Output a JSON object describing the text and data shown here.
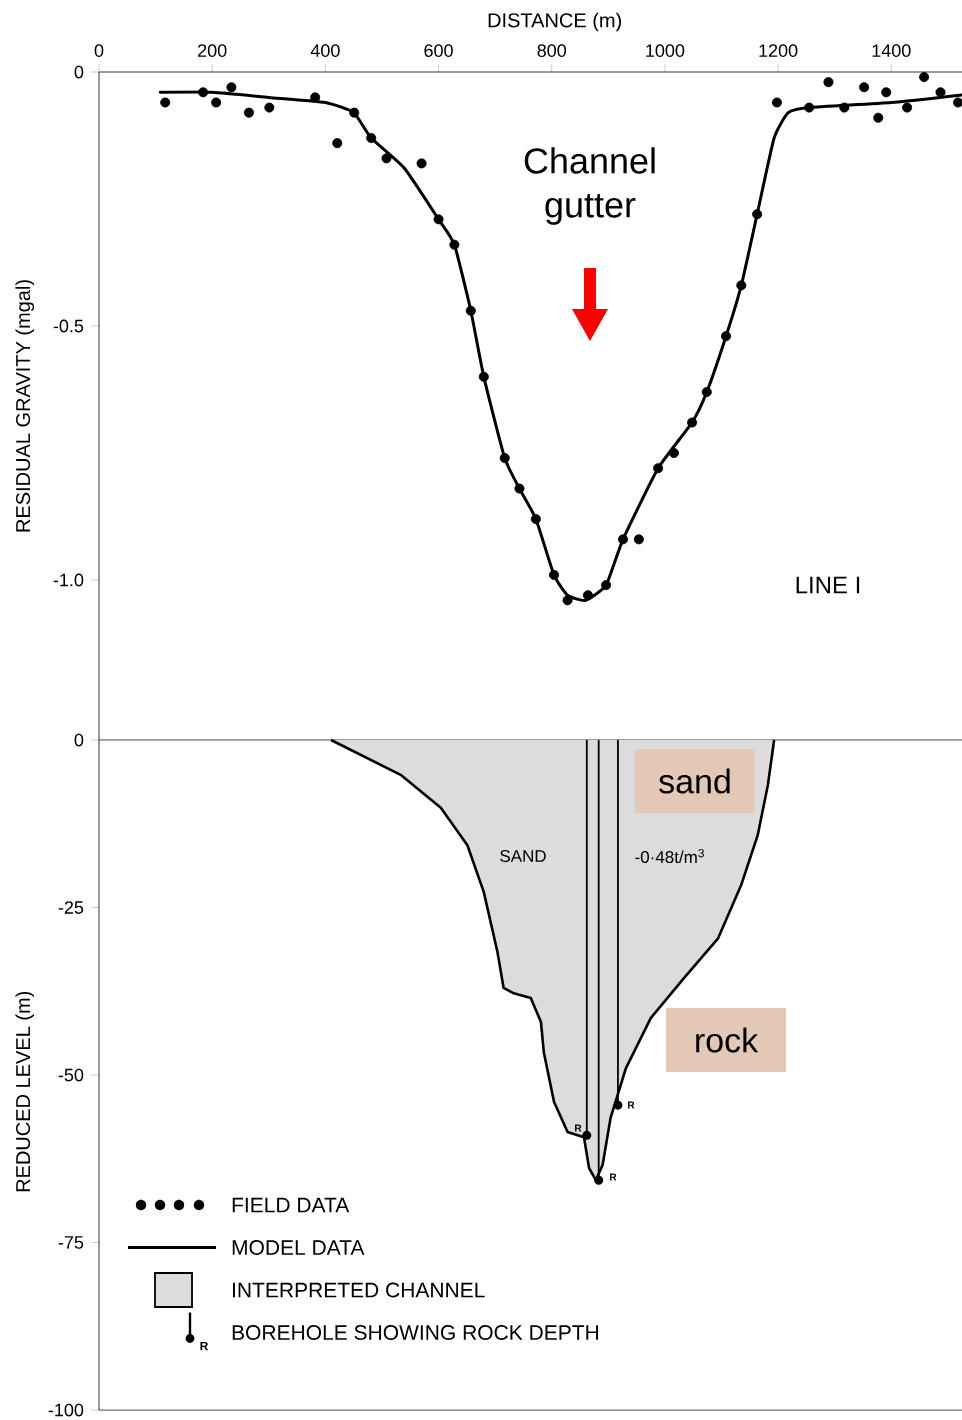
{
  "chart_data": [
    {
      "type": "line",
      "xlabel": "DISTANCE (m)",
      "ylabel": "RESIDUAL GRAVITY (mgal)",
      "xlim": [
        0,
        1525
      ],
      "ylim": [
        -1.315,
        0
      ],
      "xticks": [
        0,
        200,
        400,
        600,
        800,
        1000,
        1200,
        1400
      ],
      "yticks": [
        0,
        -0.5,
        {
          "value": -1.0,
          "label": "-1.0"
        }
      ],
      "legend": "bottom",
      "annotations": [
        "Channel gutter",
        "LINE I"
      ],
      "series": [
        {
          "name": "FIELD DATA",
          "type": "scatter",
          "marker": "circle",
          "color": "#000000",
          "x": [
            117,
            184,
            207,
            234,
            265,
            301,
            382,
            421,
            451,
            481,
            508,
            570,
            600,
            628,
            657,
            680,
            717,
            743,
            772,
            804,
            828,
            864,
            896,
            926,
            954,
            988,
            1016,
            1048,
            1074,
            1108,
            1135,
            1163,
            1198,
            1255,
            1289,
            1317,
            1352,
            1377,
            1391,
            1428,
            1458,
            1487,
            1518
          ],
          "values": [
            -0.06,
            -0.04,
            -0.06,
            -0.03,
            -0.08,
            -0.07,
            -0.05,
            -0.14,
            -0.08,
            -0.13,
            -0.17,
            -0.18,
            -0.29,
            -0.34,
            -0.47,
            -0.6,
            -0.76,
            -0.82,
            -0.88,
            -0.99,
            -1.04,
            -1.03,
            -1.01,
            -0.92,
            -0.92,
            -0.78,
            -0.75,
            -0.69,
            -0.63,
            -0.52,
            -0.42,
            -0.28,
            -0.06,
            -0.07,
            -0.02,
            -0.07,
            -0.03,
            -0.09,
            -0.04,
            -0.07,
            -0.01,
            -0.04,
            -0.06
          ]
        },
        {
          "name": "MODEL DATA",
          "marker": "none",
          "line_style": "solid",
          "color": "#000000",
          "x": [
            108,
            200,
            300,
            400,
            450,
            481,
            540,
            600,
            628,
            657,
            680,
            717,
            743,
            772,
            804,
            828,
            860,
            896,
            926,
            988,
            1048,
            1074,
            1108,
            1135,
            1163,
            1193,
            1218,
            1255,
            1400,
            1525
          ],
          "values": [
            -0.04,
            -0.04,
            -0.05,
            -0.06,
            -0.08,
            -0.13,
            -0.19,
            -0.29,
            -0.34,
            -0.47,
            -0.6,
            -0.76,
            -0.82,
            -0.88,
            -0.99,
            -1.03,
            -1.04,
            -1.01,
            -0.92,
            -0.78,
            -0.69,
            -0.63,
            -0.52,
            -0.42,
            -0.28,
            -0.13,
            -0.08,
            -0.07,
            -0.06,
            -0.045
          ]
        }
      ]
    },
    {
      "type": "area",
      "ylabel": "REDUCED LEVEL (m)",
      "xlim": [
        0,
        1525
      ],
      "ylim": [
        -100,
        0
      ],
      "yticks": [
        0,
        -25,
        -50,
        -75,
        -100
      ],
      "tick_labels": "y",
      "legend": "bottom left",
      "annotations": [
        "SAND",
        "-0·48t/m$^{3}$",
        "sand",
        "rock",
        "R",
        "R",
        "R",
        "R"
      ],
      "series": [
        {
          "name": "INTERPRETED CHANNEL",
          "color": "#dcdcdc",
          "x": [
            410,
            533,
            604,
            651,
            680,
            704,
            715,
            733,
            763,
            781,
            786,
            804,
            828,
            857,
            866,
            878,
            890,
            904,
            931,
            975,
            1034,
            1094,
            1135,
            1164,
            1182,
            1193
          ],
          "values": [
            0,
            -5.2,
            -10.1,
            -15.7,
            -22.7,
            -31.6,
            -37.0,
            -37.8,
            -38.5,
            -42.1,
            -46.6,
            -54.0,
            -58.5,
            -59.3,
            -63.9,
            -65.7,
            -63.4,
            -56.4,
            -49.0,
            -41.5,
            -35.5,
            -29.6,
            -21.6,
            -14.2,
            -6.7,
            0
          ]
        },
        {
          "name": "BOREHOLE SHOWING ROCK DEPTH",
          "type": "lollipop",
          "color": "#000000",
          "x": [
            862,
            883,
            917
          ],
          "values": [
            -59,
            -65.7,
            -54.5
          ]
        }
      ]
    }
  ]
}
